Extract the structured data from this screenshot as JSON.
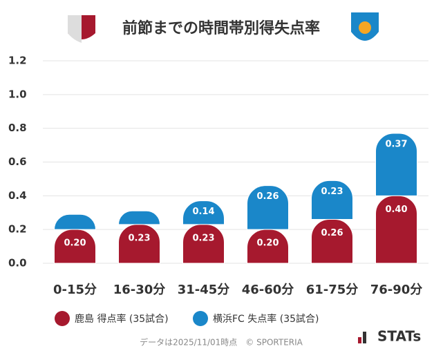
{
  "chart_data": {
    "type": "stacked-bar",
    "title": "前節までの時間帯別得失点率",
    "categories": [
      "0-15分",
      "16-30分",
      "31-45分",
      "46-60分",
      "61-75分",
      "76-90分"
    ],
    "series": [
      {
        "name": "鹿島 得点率 (35試合)",
        "color": "#a6192e",
        "values": [
          0.2,
          0.23,
          0.23,
          0.2,
          0.26,
          0.4
        ],
        "value_labels": [
          "0.20",
          "0.23",
          "0.23",
          "0.20",
          "0.26",
          "0.40"
        ]
      },
      {
        "name": "横浜FC 失点率 (35試合)",
        "color": "#1a87c9",
        "values": [
          0.09,
          0.08,
          0.14,
          0.26,
          0.23,
          0.37
        ],
        "value_labels": [
          null,
          null,
          "0.14",
          "0.26",
          "0.23",
          "0.37"
        ]
      }
    ],
    "ylim": [
      0,
      1.2
    ],
    "yticks": [
      {
        "value": 0,
        "label": "0.0"
      },
      0.2,
      0.4,
      0.6,
      0.8,
      {
        "value": 1,
        "label": "1.0"
      },
      1.2
    ],
    "grid": true,
    "footnote": "データは2025/11/01時点　© SPORTERIA",
    "logo": "STATs"
  }
}
